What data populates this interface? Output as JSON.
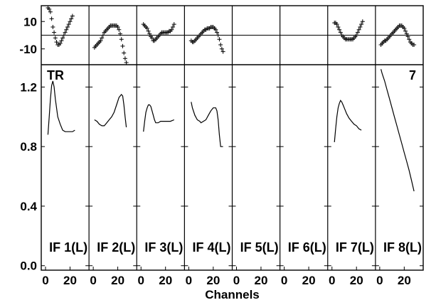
{
  "chart_data": {
    "type": "line",
    "xlabel": "Channels",
    "corner_labels": {
      "left": "TR",
      "right": "7"
    },
    "top_yticks": [
      "10",
      "-10"
    ],
    "bottom_yticks": [
      "1.2",
      "0.8",
      "0.4",
      "0.0"
    ],
    "xtick_labels": [
      "0",
      "20"
    ],
    "x_range": [
      0,
      32
    ],
    "top_ylim": [
      -20,
      20
    ],
    "bottom_ylim": [
      -0.03,
      1.35
    ],
    "top_plot": "crosses",
    "bottom_plot": "line",
    "panels": [
      {
        "name": "IF 1(L)",
        "bottom": [
          [
            2,
            0.88
          ],
          [
            3,
            1.0
          ],
          [
            4,
            1.12
          ],
          [
            5,
            1.21
          ],
          [
            6,
            1.24
          ],
          [
            7,
            1.2
          ],
          [
            8,
            1.12
          ],
          [
            9,
            1.06
          ],
          [
            10,
            1.0
          ],
          [
            12,
            0.95
          ],
          [
            14,
            0.91
          ],
          [
            16,
            0.9
          ],
          [
            18,
            0.9
          ],
          [
            20,
            0.9
          ],
          [
            22,
            0.9
          ],
          [
            24,
            0.91
          ]
        ],
        "top": [
          [
            2,
            20
          ],
          [
            3,
            19
          ],
          [
            4,
            17
          ],
          [
            5,
            12
          ],
          [
            6,
            6
          ],
          [
            7,
            2
          ],
          [
            8,
            -2
          ],
          [
            9,
            -5
          ],
          [
            10,
            -7
          ],
          [
            11,
            -7
          ],
          [
            12,
            -6
          ],
          [
            13,
            -4
          ],
          [
            14,
            -2
          ],
          [
            15,
            0
          ],
          [
            16,
            2
          ],
          [
            17,
            4
          ],
          [
            18,
            6
          ],
          [
            19,
            8
          ],
          [
            20,
            10
          ],
          [
            21,
            12
          ],
          [
            22,
            14
          ]
        ]
      },
      {
        "name": "IF 2(L)",
        "bottom": [
          [
            1,
            0.98
          ],
          [
            3,
            0.97
          ],
          [
            5,
            0.95
          ],
          [
            7,
            0.94
          ],
          [
            9,
            0.94
          ],
          [
            11,
            0.96
          ],
          [
            13,
            0.98
          ],
          [
            15,
            1.0
          ],
          [
            17,
            1.03
          ],
          [
            19,
            1.08
          ],
          [
            21,
            1.13
          ],
          [
            23,
            1.15
          ],
          [
            24,
            1.14
          ],
          [
            25,
            1.08
          ],
          [
            26,
            1.0
          ],
          [
            27,
            0.93
          ]
        ],
        "top": [
          [
            1,
            -9
          ],
          [
            2,
            -8
          ],
          [
            3,
            -7
          ],
          [
            4,
            -6
          ],
          [
            5,
            -5
          ],
          [
            6,
            -4
          ],
          [
            7,
            -2
          ],
          [
            8,
            0
          ],
          [
            9,
            2
          ],
          [
            10,
            3
          ],
          [
            11,
            4
          ],
          [
            12,
            5
          ],
          [
            13,
            6
          ],
          [
            14,
            7
          ],
          [
            15,
            7
          ],
          [
            16,
            7
          ],
          [
            17,
            7
          ],
          [
            18,
            7
          ],
          [
            19,
            7
          ],
          [
            20,
            6
          ],
          [
            21,
            4
          ],
          [
            22,
            1
          ],
          [
            23,
            -3
          ],
          [
            24,
            -8
          ],
          [
            25,
            -13
          ],
          [
            26,
            -17
          ],
          [
            27,
            -20
          ]
        ]
      },
      {
        "name": "IF 3(L)",
        "bottom": [
          [
            2,
            0.9
          ],
          [
            3,
            0.97
          ],
          [
            4,
            1.03
          ],
          [
            5,
            1.06
          ],
          [
            6,
            1.08
          ],
          [
            7,
            1.08
          ],
          [
            8,
            1.07
          ],
          [
            9,
            1.04
          ],
          [
            10,
            1.01
          ],
          [
            11,
            0.98
          ],
          [
            12,
            0.96
          ],
          [
            14,
            0.96
          ],
          [
            16,
            0.97
          ],
          [
            18,
            0.97
          ],
          [
            20,
            0.97
          ],
          [
            22,
            0.97
          ],
          [
            24,
            0.97
          ],
          [
            27,
            0.98
          ]
        ],
        "top": [
          [
            2,
            8
          ],
          [
            3,
            7
          ],
          [
            4,
            6
          ],
          [
            5,
            5
          ],
          [
            6,
            3
          ],
          [
            7,
            1
          ],
          [
            8,
            -1
          ],
          [
            9,
            -2
          ],
          [
            10,
            -4
          ],
          [
            11,
            -4
          ],
          [
            12,
            -3
          ],
          [
            13,
            -2
          ],
          [
            14,
            -1
          ],
          [
            15,
            0
          ],
          [
            16,
            1
          ],
          [
            17,
            2
          ],
          [
            18,
            2
          ],
          [
            19,
            2
          ],
          [
            20,
            2
          ],
          [
            21,
            2
          ],
          [
            22,
            2
          ],
          [
            23,
            3
          ],
          [
            24,
            3
          ],
          [
            25,
            4
          ],
          [
            26,
            6
          ],
          [
            27,
            8
          ]
        ]
      },
      {
        "name": "IF 4(L)",
        "bottom": [
          [
            2,
            1.1
          ],
          [
            3,
            1.06
          ],
          [
            5,
            1.01
          ],
          [
            7,
            0.98
          ],
          [
            9,
            0.97
          ],
          [
            10,
            0.96
          ],
          [
            12,
            0.97
          ],
          [
            14,
            0.98
          ],
          [
            16,
            1.01
          ],
          [
            18,
            1.04
          ],
          [
            20,
            1.06
          ],
          [
            22,
            1.06
          ],
          [
            23,
            1.04
          ],
          [
            24,
            0.98
          ],
          [
            25,
            0.88
          ],
          [
            26,
            0.8
          ],
          [
            28,
            0.8
          ]
        ],
        "top": [
          [
            2,
            -4
          ],
          [
            3,
            -5
          ],
          [
            4,
            -5
          ],
          [
            5,
            -4
          ],
          [
            6,
            -3
          ],
          [
            7,
            -2
          ],
          [
            8,
            -1
          ],
          [
            9,
            0
          ],
          [
            10,
            1
          ],
          [
            11,
            2
          ],
          [
            12,
            3
          ],
          [
            13,
            4
          ],
          [
            14,
            4
          ],
          [
            15,
            5
          ],
          [
            16,
            5
          ],
          [
            17,
            5
          ],
          [
            18,
            6
          ],
          [
            19,
            6
          ],
          [
            20,
            6
          ],
          [
            21,
            5
          ],
          [
            22,
            4
          ],
          [
            23,
            2
          ],
          [
            24,
            0
          ],
          [
            25,
            -3
          ],
          [
            26,
            -7
          ],
          [
            27,
            -10
          ],
          [
            28,
            -12
          ]
        ]
      },
      {
        "name": "IF 5(L)",
        "bottom": [],
        "top": []
      },
      {
        "name": "IF 6(L)",
        "bottom": [],
        "top": []
      },
      {
        "name": "IF 7(L)",
        "bottom": [
          [
            2,
            0.83
          ],
          [
            3,
            0.92
          ],
          [
            4,
            1.0
          ],
          [
            5,
            1.06
          ],
          [
            6,
            1.09
          ],
          [
            7,
            1.11
          ],
          [
            8,
            1.1
          ],
          [
            9,
            1.08
          ],
          [
            10,
            1.06
          ],
          [
            12,
            1.02
          ],
          [
            14,
            0.99
          ],
          [
            16,
            0.97
          ],
          [
            18,
            0.95
          ],
          [
            20,
            0.94
          ],
          [
            22,
            0.92
          ],
          [
            24,
            0.91
          ]
        ],
        "top": [
          [
            2,
            9
          ],
          [
            3,
            9
          ],
          [
            4,
            8
          ],
          [
            5,
            6
          ],
          [
            6,
            4
          ],
          [
            7,
            2
          ],
          [
            8,
            0
          ],
          [
            9,
            -1
          ],
          [
            10,
            -2
          ],
          [
            11,
            -3
          ],
          [
            12,
            -3
          ],
          [
            13,
            -3
          ],
          [
            14,
            -3
          ],
          [
            15,
            -3
          ],
          [
            16,
            -3
          ],
          [
            17,
            -3
          ],
          [
            18,
            -2
          ],
          [
            19,
            -1
          ],
          [
            20,
            0
          ],
          [
            21,
            2
          ],
          [
            22,
            4
          ],
          [
            23,
            6
          ],
          [
            24,
            8
          ],
          [
            25,
            10
          ]
        ]
      },
      {
        "name": "IF 8(L)",
        "bottom": [
          [
            1,
            1.32
          ],
          [
            2,
            1.29
          ],
          [
            4,
            1.24
          ],
          [
            6,
            1.18
          ],
          [
            8,
            1.12
          ],
          [
            10,
            1.06
          ],
          [
            12,
            1.0
          ],
          [
            14,
            0.94
          ],
          [
            16,
            0.88
          ],
          [
            18,
            0.82
          ],
          [
            20,
            0.76
          ],
          [
            22,
            0.7
          ],
          [
            24,
            0.64
          ],
          [
            26,
            0.57
          ],
          [
            28,
            0.5
          ]
        ],
        "top": [
          [
            1,
            -7
          ],
          [
            2,
            -6
          ],
          [
            3,
            -5
          ],
          [
            4,
            -4
          ],
          [
            5,
            -4
          ],
          [
            6,
            -3
          ],
          [
            7,
            -2
          ],
          [
            8,
            -1
          ],
          [
            9,
            0
          ],
          [
            10,
            1
          ],
          [
            11,
            2
          ],
          [
            12,
            3
          ],
          [
            13,
            4
          ],
          [
            14,
            5
          ],
          [
            15,
            6
          ],
          [
            16,
            7
          ],
          [
            17,
            7
          ],
          [
            18,
            7
          ],
          [
            19,
            6
          ],
          [
            20,
            5
          ],
          [
            21,
            3
          ],
          [
            22,
            1
          ],
          [
            23,
            -1
          ],
          [
            24,
            -3
          ],
          [
            25,
            -5
          ],
          [
            26,
            -6
          ],
          [
            27,
            -7
          ],
          [
            28,
            -7
          ]
        ]
      }
    ]
  }
}
